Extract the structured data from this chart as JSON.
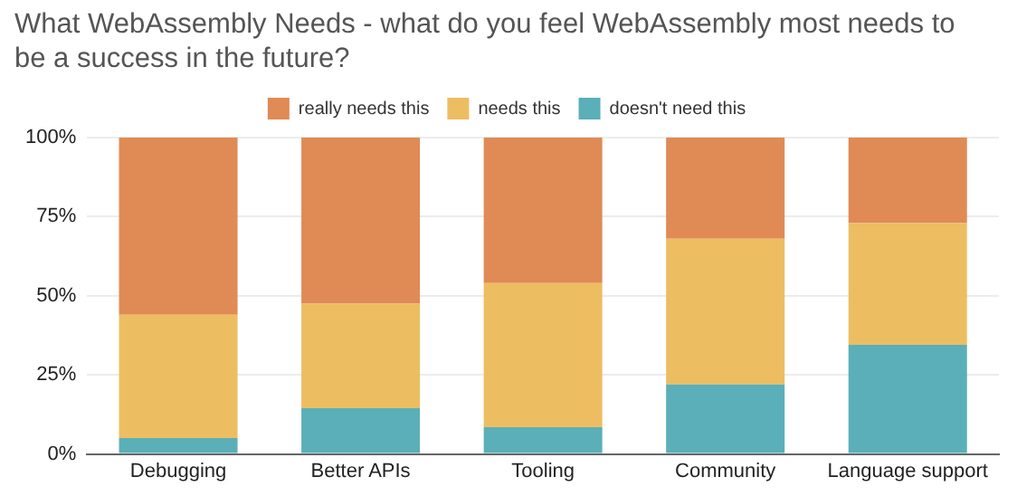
{
  "chart_data": {
    "type": "bar",
    "stacked": true,
    "title": "What WebAssembly Needs - what do you feel WebAssembly most needs to be a success in the future?",
    "categories": [
      "Debugging",
      "Better APIs",
      "Tooling",
      "Community",
      "Language support"
    ],
    "series": [
      {
        "name": "doesn't need this",
        "color": "#5aafb8",
        "values": [
          5,
          14.5,
          8.5,
          22,
          34.5
        ]
      },
      {
        "name": "needs this",
        "color": "#edbd62",
        "values": [
          39,
          33,
          45.5,
          46,
          38.5
        ]
      },
      {
        "name": "really needs this",
        "color": "#e08a55",
        "values": [
          56,
          52.5,
          46,
          32,
          27
        ]
      }
    ],
    "ylim": [
      0,
      100
    ],
    "yticks": [
      {
        "value": 0,
        "label": "0%"
      },
      {
        "value": 25,
        "label": "25%"
      },
      {
        "value": 50,
        "label": "50%"
      },
      {
        "value": 75,
        "label": "75%"
      },
      {
        "value": 100,
        "label": "100%"
      }
    ],
    "grid": "y",
    "legend": "top"
  }
}
